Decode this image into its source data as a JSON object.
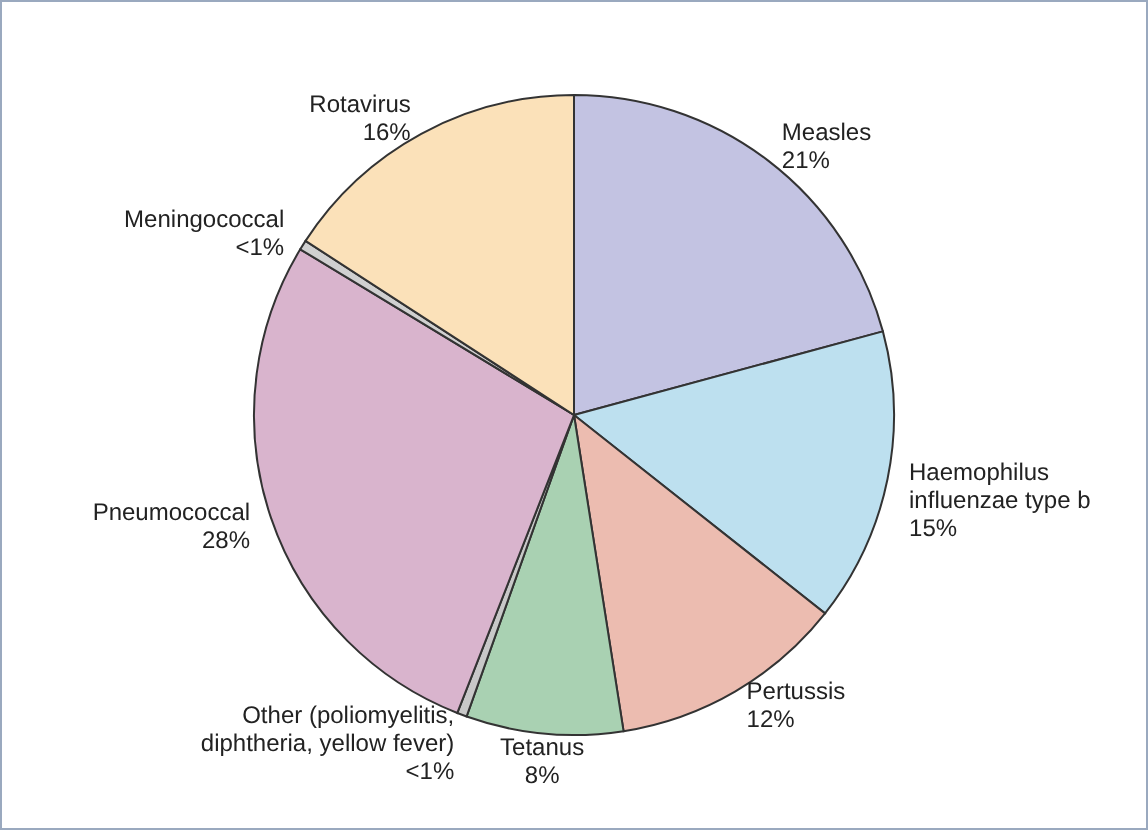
{
  "chart_data": {
    "type": "pie",
    "categories": [
      "Measles",
      "Haemophilus influenzae type b",
      "Pertussis",
      "Tetanus",
      "Other (poliomyelitis, diphtheria, yellow fever)",
      "Pneumococcal",
      "Meningococcal",
      "Rotavirus"
    ],
    "values": [
      21,
      15,
      12,
      8,
      0.5,
      28,
      0.5,
      16
    ],
    "value_labels": [
      "21%",
      "15%",
      "12%",
      "8%",
      "<1%",
      "28%",
      "<1%",
      "16%"
    ],
    "colors": [
      "#c3c3e2",
      "#bde0ef",
      "#ecbcb0",
      "#a9d1b2",
      "#c8c8c8",
      "#d9b4cd",
      "#d0d0d0",
      "#fbe1b9"
    ]
  }
}
